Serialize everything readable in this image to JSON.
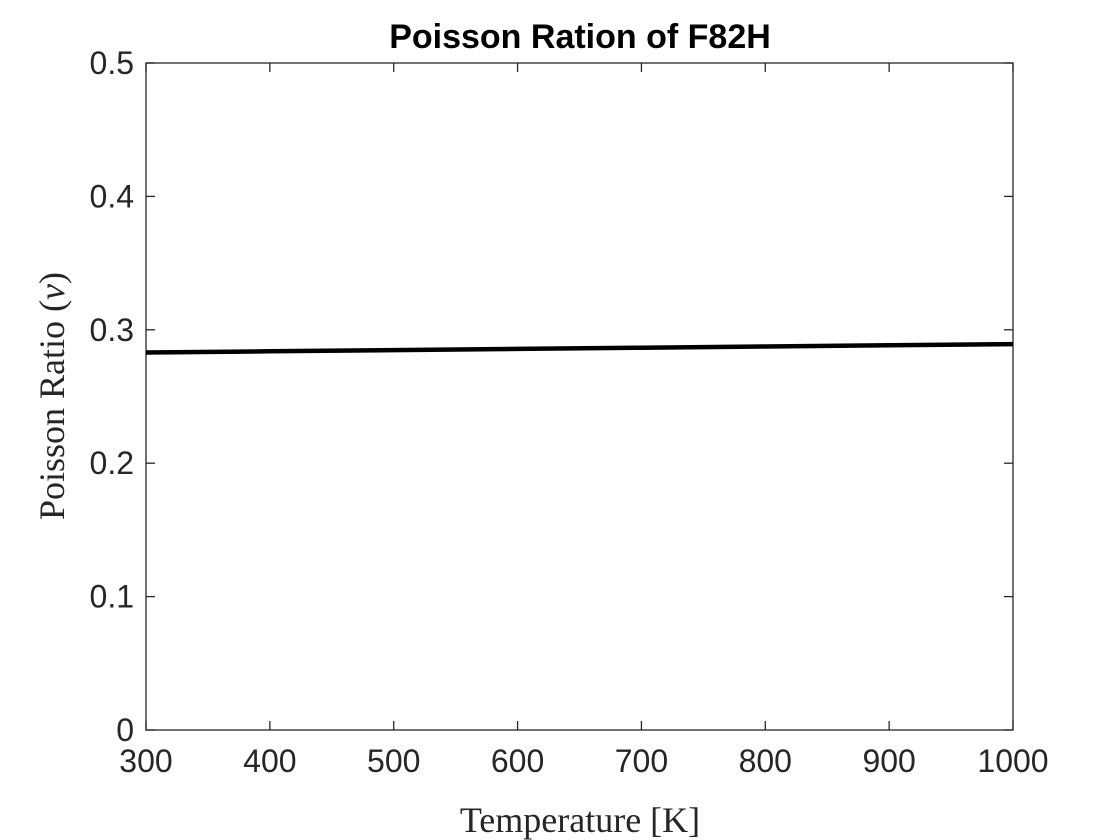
{
  "chart_data": {
    "type": "line",
    "title": "Poisson Ration of F82H",
    "xlabel": "Temperature [K]",
    "ylabel_text": "Poisson Ratio (",
    "ylabel_symbol": "ν",
    "ylabel_close": ")",
    "xlim": [
      300,
      1000
    ],
    "ylim": [
      0,
      0.5
    ],
    "x_ticks": [
      300,
      400,
      500,
      600,
      700,
      800,
      900,
      1000
    ],
    "x_tick_labels": [
      "300",
      "400",
      "500",
      "600",
      "700",
      "800",
      "900",
      "1000"
    ],
    "y_ticks": [
      0,
      0.1,
      0.2,
      0.3,
      0.4,
      0.5
    ],
    "y_tick_labels": [
      "0",
      "0.1",
      "0.2",
      "0.3",
      "0.4",
      "0.5"
    ],
    "grid": false,
    "box": true,
    "series": [
      {
        "color": "#000000",
        "x": [
          300,
          400,
          500,
          600,
          700,
          800,
          900,
          1000
        ],
        "y": [
          0.283,
          0.2839,
          0.2848,
          0.2857,
          0.2866,
          0.2875,
          0.2884,
          0.2893
        ]
      }
    ]
  }
}
